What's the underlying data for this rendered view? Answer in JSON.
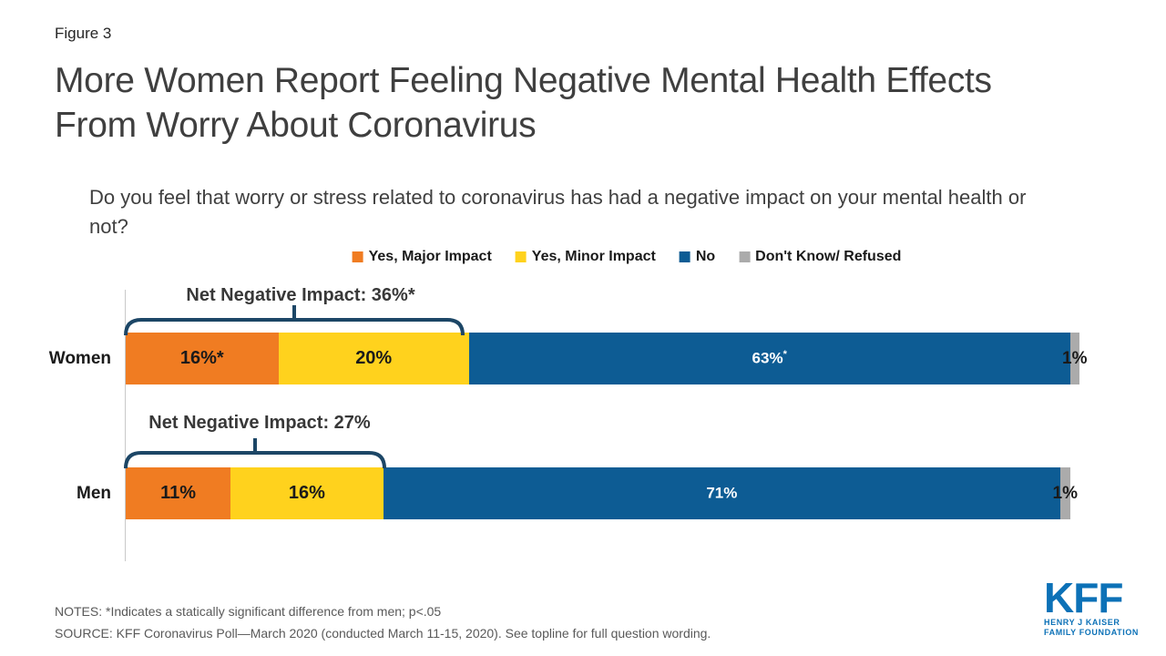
{
  "figure_label": "Figure 3",
  "title": {
    "line1": "More Women Report Feeling Negative Mental Health Effects",
    "line2": "From Worry About Coronavirus"
  },
  "question": "Do you feel that worry or stress related to coronavirus has had a negative impact on your mental health or not?",
  "legend": [
    {
      "label": "Yes, Major Impact",
      "color": "#F07C22"
    },
    {
      "label": "Yes, Minor Impact",
      "color": "#FFD21D"
    },
    {
      "label": "No",
      "color": "#0D5C94"
    },
    {
      "label": "Don't Know/ Refused",
      "color": "#ABABAB"
    }
  ],
  "chart_data": {
    "type": "bar",
    "orientation": "horizontal-stacked",
    "categories": [
      "Women",
      "Men"
    ],
    "series": [
      {
        "name": "Yes, Major Impact",
        "color": "#F07C22",
        "values": [
          16,
          11
        ],
        "labels": [
          "16%*",
          "11%"
        ]
      },
      {
        "name": "Yes, Minor Impact",
        "color": "#FFD21D",
        "values": [
          20,
          16
        ],
        "labels": [
          "20%",
          "16%"
        ]
      },
      {
        "name": "No",
        "color": "#0D5C94",
        "values": [
          63,
          71
        ],
        "labels": [
          "63%",
          "71%"
        ],
        "sups": [
          "*",
          ""
        ]
      },
      {
        "name": "Don't Know/ Refused",
        "color": "#ABABAB",
        "values": [
          1,
          1
        ],
        "labels": [
          "1%",
          "1%"
        ]
      }
    ],
    "annotations": [
      {
        "category": "Women",
        "text": "Net Negative Impact: 36%*",
        "span_pct": 36
      },
      {
        "category": "Men",
        "text": "Net Negative Impact: 27%",
        "span_pct": 27
      }
    ],
    "xlim": [
      0,
      100
    ],
    "legend_position": "top-center",
    "grid": false
  },
  "notes": "NOTES: *Indicates a statically significant difference from men; p<.05",
  "source": "SOURCE: KFF Coronavirus Poll—March 2020 (conducted March 11-15, 2020). See topline for full question wording.",
  "logo": {
    "name": "KFF",
    "line1": "HENRY J KAISER",
    "line2": "FAMILY FOUNDATION"
  },
  "colors": {
    "bracket": "#1C4666",
    "logo_blue": "#0C71B7",
    "axis_line": "#C9C9C9"
  }
}
